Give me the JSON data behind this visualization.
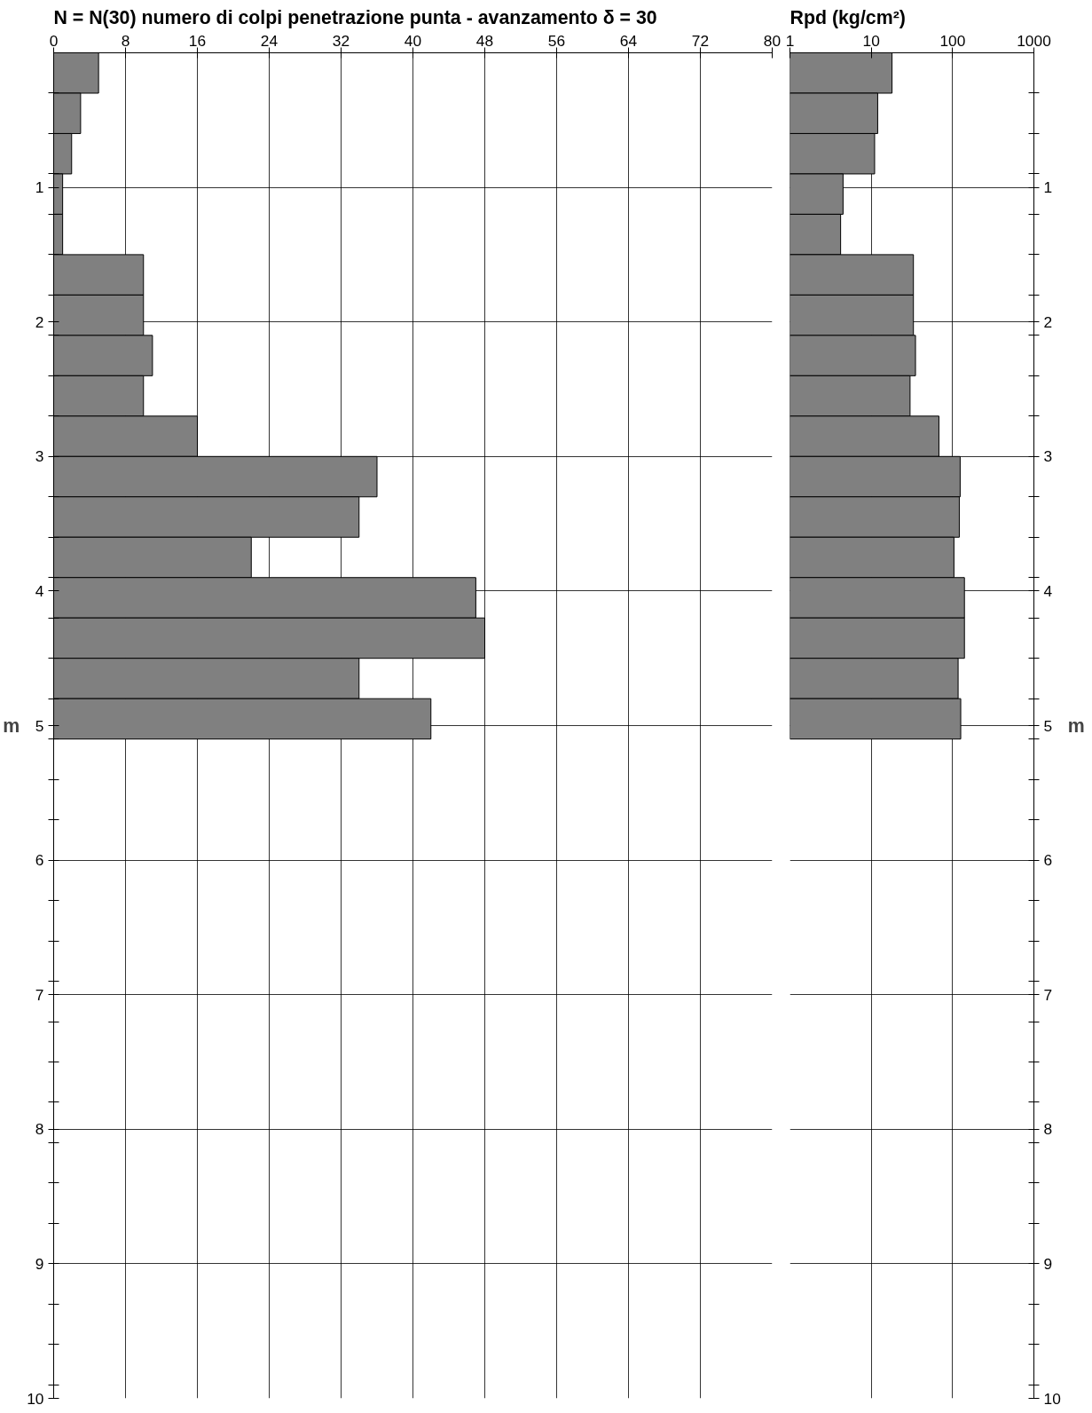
{
  "chart_data": [
    {
      "type": "bar",
      "orientation": "horizontal",
      "title": "N = N(30)  numero di colpi penetrazione punta  -  avanzamento  δ =  30",
      "ylabel": "m",
      "x": [
        0.15,
        0.45,
        0.75,
        1.05,
        1.35,
        1.65,
        1.95,
        2.25,
        2.55,
        2.85,
        3.15,
        3.45,
        3.75,
        4.05,
        4.35,
        4.65,
        4.95
      ],
      "values": [
        5,
        3,
        2,
        1,
        1,
        10,
        10,
        11,
        10,
        16,
        36,
        34,
        22,
        47,
        48,
        34,
        42
      ],
      "color": "#808080",
      "xlim": [
        0,
        80
      ],
      "xticks": [
        0,
        8,
        16,
        24,
        32,
        40,
        48,
        56,
        64,
        72,
        80
      ],
      "ylim": [
        10,
        0
      ],
      "yticks": [
        {
          "value": 0.3,
          "label": null
        },
        {
          "value": 0.6,
          "label": null
        },
        {
          "value": 0.9,
          "label": null
        },
        1,
        {
          "value": 1.2,
          "label": null
        },
        {
          "value": 1.5,
          "label": null
        },
        {
          "value": 1.8,
          "label": null
        },
        2,
        {
          "value": 2.1,
          "label": null
        },
        {
          "value": 2.4,
          "label": null
        },
        {
          "value": 2.7,
          "label": null
        },
        3,
        {
          "value": 3.3,
          "label": null
        },
        {
          "value": 3.6,
          "label": null
        },
        {
          "value": 3.9,
          "label": null
        },
        4,
        {
          "value": 4.2,
          "label": null
        },
        {
          "value": 4.5,
          "label": null
        },
        {
          "value": 4.8,
          "label": null
        },
        5,
        {
          "value": 5.1,
          "label": null
        },
        {
          "value": 5.4,
          "label": null
        },
        {
          "value": 5.7,
          "label": null
        },
        6,
        {
          "value": 6.3,
          "label": null
        },
        {
          "value": 6.6,
          "label": null
        },
        {
          "value": 6.9,
          "label": null
        },
        7,
        {
          "value": 7.2,
          "label": null
        },
        {
          "value": 7.5,
          "label": null
        },
        {
          "value": 7.8,
          "label": null
        },
        8,
        {
          "value": 8.1,
          "label": null
        },
        {
          "value": 8.4,
          "label": null
        },
        {
          "value": 8.7,
          "label": null
        },
        9,
        {
          "value": 9.3,
          "label": null
        },
        {
          "value": 9.6,
          "label": null
        },
        {
          "value": 9.9,
          "label": null
        },
        10
      ],
      "grid": true
    },
    {
      "type": "bar",
      "orientation": "horizontal",
      "title": "Rpd (kg/cm²)",
      "ylabel": "m",
      "log": "x",
      "x": [
        0.15,
        0.45,
        0.75,
        1.05,
        1.35,
        1.65,
        1.95,
        2.25,
        2.55,
        2.85,
        3.15,
        3.45,
        3.75,
        4.05,
        4.35,
        4.65,
        4.95
      ],
      "values": [
        18,
        12,
        11,
        4.5,
        4.2,
        33,
        33,
        35,
        30,
        68,
        124,
        121,
        104,
        140,
        140,
        117,
        126
      ],
      "color": "#808080",
      "xlim": [
        1,
        1000
      ],
      "xticks": [
        1,
        10,
        100,
        1000
      ],
      "ylim": [
        10,
        0
      ],
      "yticks": [
        {
          "value": 0.3,
          "label": null
        },
        {
          "value": 0.6,
          "label": null
        },
        {
          "value": 0.9,
          "label": null
        },
        1,
        {
          "value": 1.2,
          "label": null
        },
        {
          "value": 1.5,
          "label": null
        },
        {
          "value": 1.8,
          "label": null
        },
        2,
        {
          "value": 2.1,
          "label": null
        },
        {
          "value": 2.4,
          "label": null
        },
        {
          "value": 2.7,
          "label": null
        },
        3,
        {
          "value": 3.3,
          "label": null
        },
        {
          "value": 3.6,
          "label": null
        },
        {
          "value": 3.9,
          "label": null
        },
        4,
        {
          "value": 4.2,
          "label": null
        },
        {
          "value": 4.5,
          "label": null
        },
        {
          "value": 4.8,
          "label": null
        },
        5,
        {
          "value": 5.1,
          "label": null
        },
        {
          "value": 5.4,
          "label": null
        },
        {
          "value": 5.7,
          "label": null
        },
        6,
        {
          "value": 6.3,
          "label": null
        },
        {
          "value": 6.6,
          "label": null
        },
        {
          "value": 6.9,
          "label": null
        },
        7,
        {
          "value": 7.2,
          "label": null
        },
        {
          "value": 7.5,
          "label": null
        },
        {
          "value": 7.8,
          "label": null
        },
        8,
        {
          "value": 8.1,
          "label": null
        },
        {
          "value": 8.4,
          "label": null
        },
        {
          "value": 8.7,
          "label": null
        },
        9,
        {
          "value": 9.3,
          "label": null
        },
        {
          "value": 9.6,
          "label": null
        },
        {
          "value": 9.9,
          "label": null
        },
        10
      ],
      "grid": true
    }
  ]
}
